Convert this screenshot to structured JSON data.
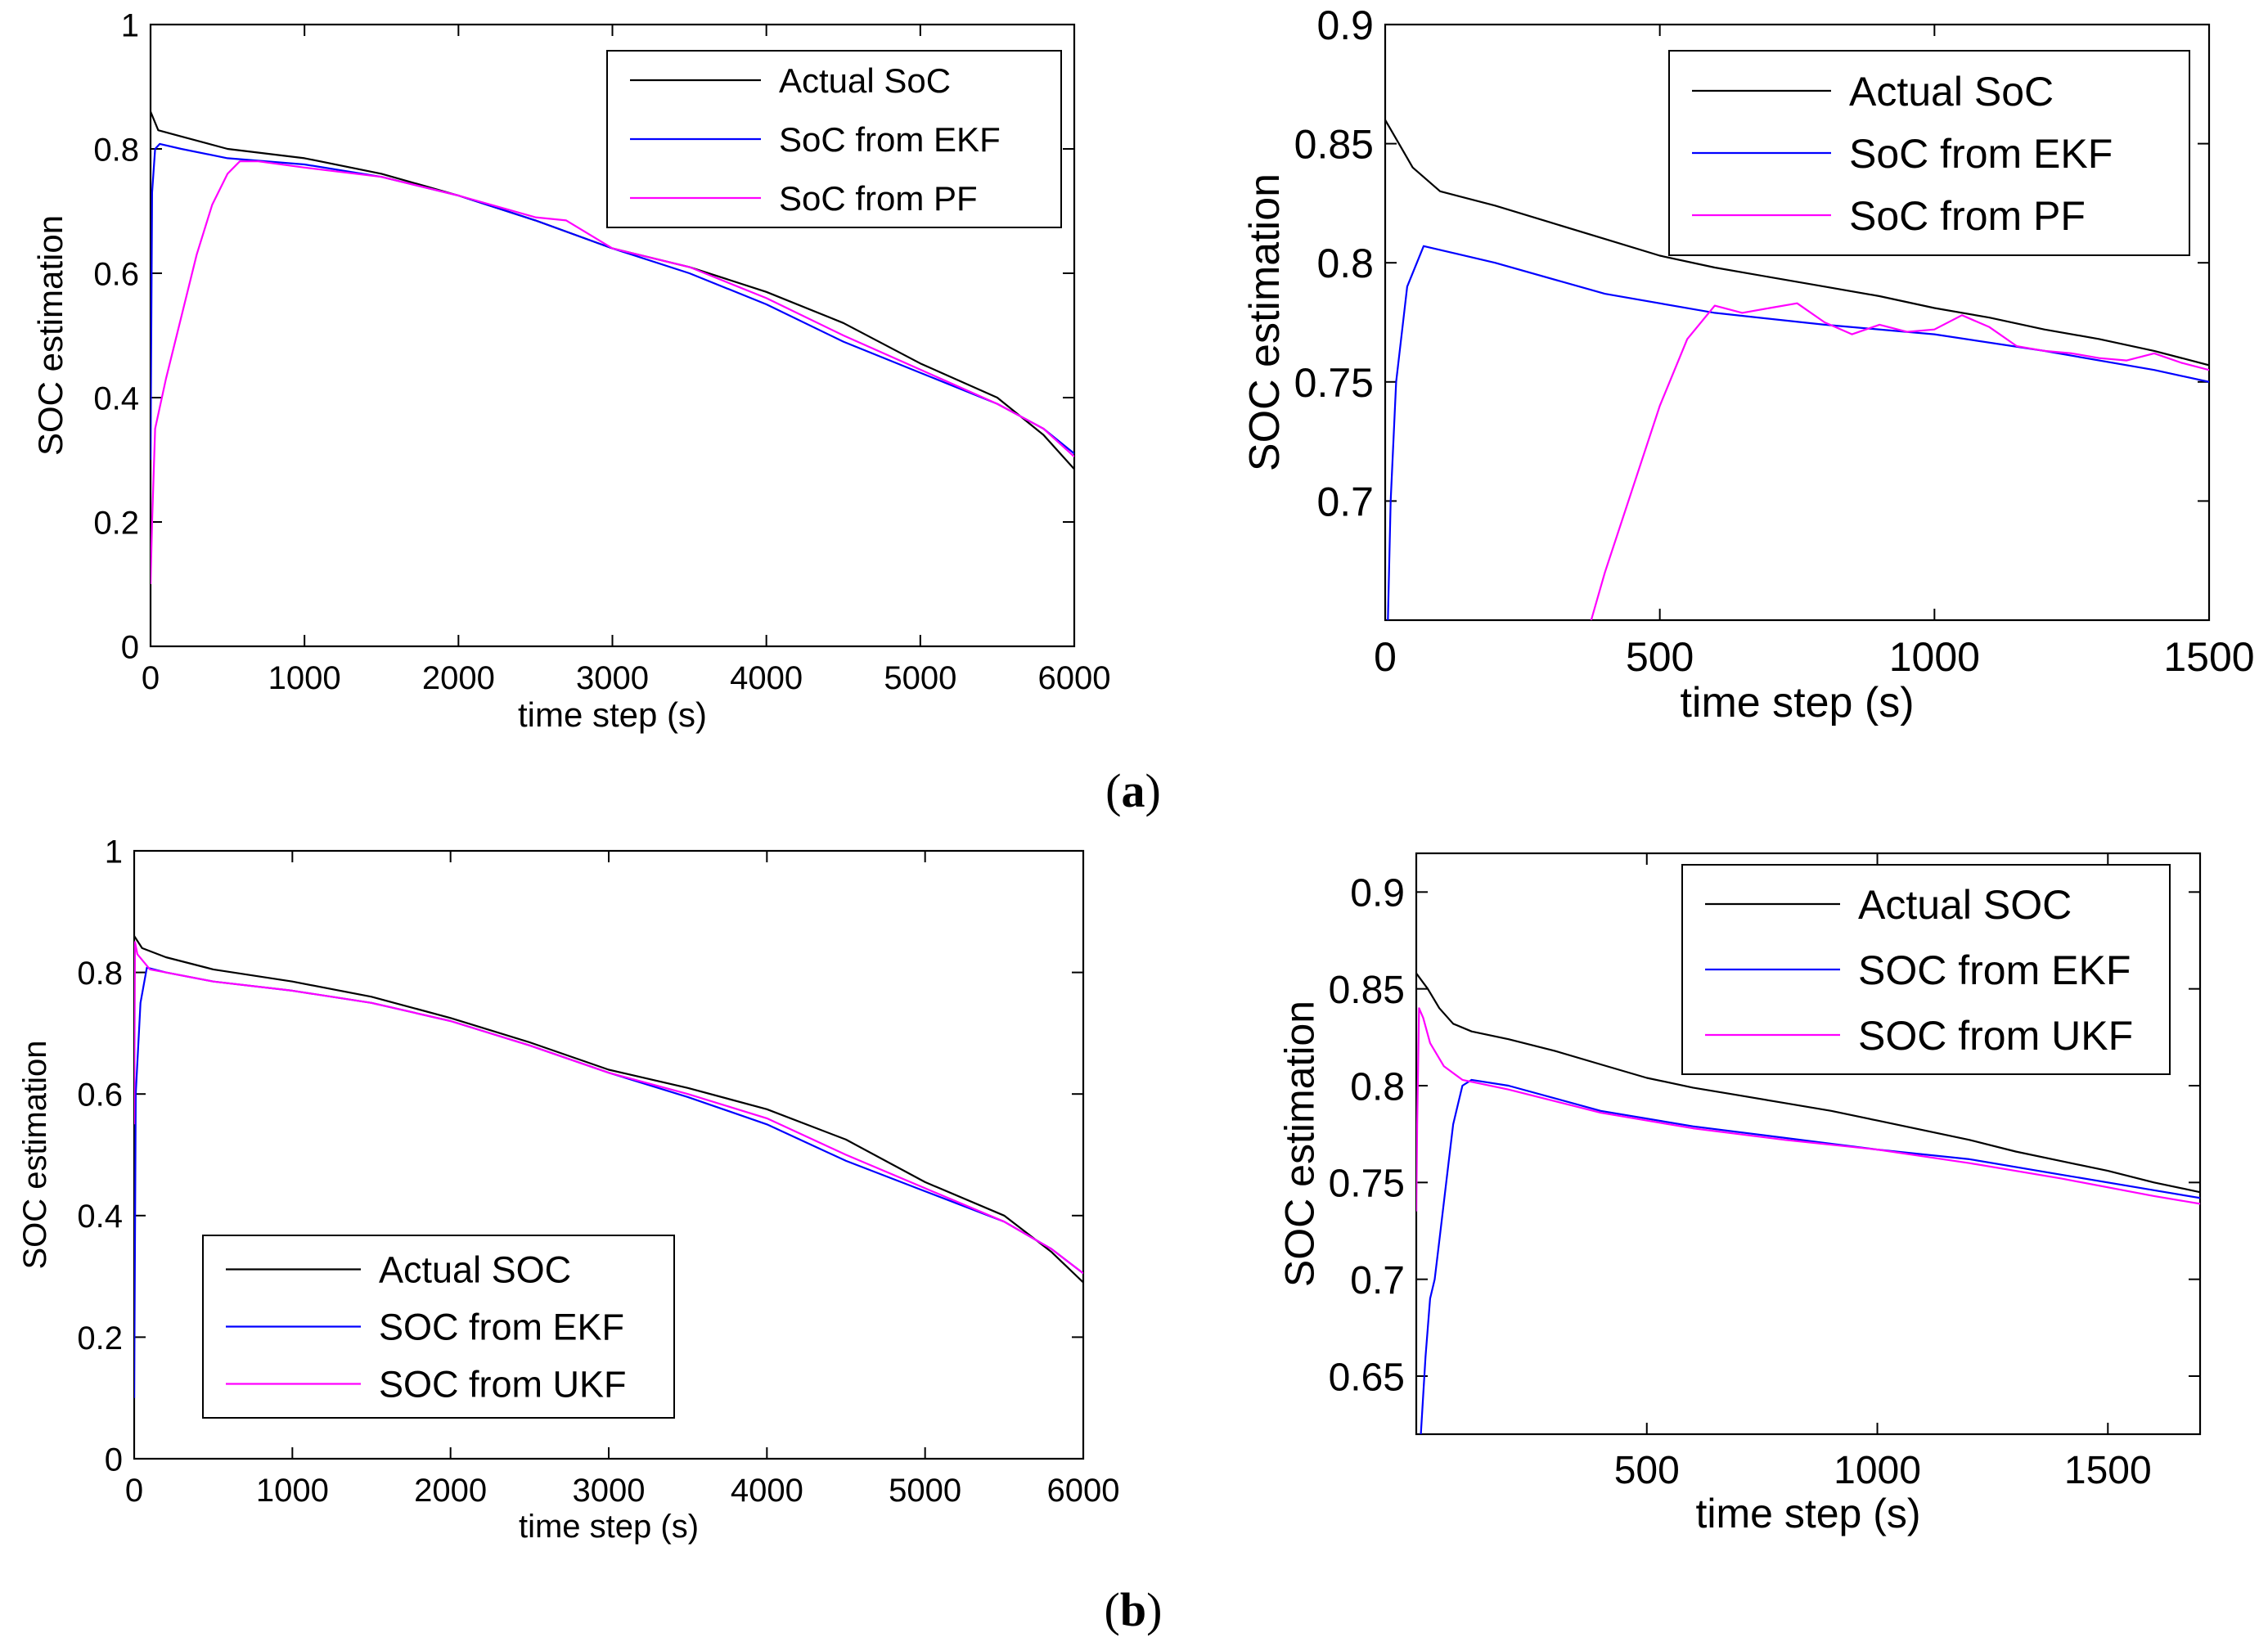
{
  "figure": {
    "label_a": "a",
    "label_b": "b"
  },
  "chart_data": [
    {
      "type": "line",
      "xlabel": "time step (s)",
      "ylabel": "SOC estimation",
      "xlim": [
        0,
        6000
      ],
      "ylim": [
        0,
        1
      ],
      "xticks": [
        0,
        1000,
        2000,
        3000,
        4000,
        5000,
        6000
      ],
      "yticks": [
        0,
        0.2,
        0.4,
        0.6,
        0.8,
        1
      ],
      "ytick_labels": [
        "0",
        "0.2",
        "0.4",
        "0.6",
        "0.8",
        "1"
      ],
      "legend_position": "top-right",
      "series": [
        {
          "name": "Actual SoC",
          "color": "#000000",
          "x": [
            0,
            50,
            200,
            500,
            1000,
            1500,
            2000,
            2500,
            3000,
            3500,
            4000,
            4500,
            5000,
            5500,
            5800,
            6000
          ],
          "y": [
            0.86,
            0.83,
            0.82,
            0.8,
            0.785,
            0.76,
            0.725,
            0.685,
            0.64,
            0.61,
            0.57,
            0.52,
            0.455,
            0.4,
            0.34,
            0.285
          ]
        },
        {
          "name": "SoC from EKF",
          "color": "#0000ff",
          "x": [
            0,
            10,
            30,
            60,
            200,
            500,
            1000,
            1500,
            2000,
            2500,
            3000,
            3500,
            4000,
            4500,
            5000,
            5500,
            5800,
            6000
          ],
          "y": [
            0.3,
            0.73,
            0.8,
            0.808,
            0.8,
            0.785,
            0.775,
            0.755,
            0.725,
            0.685,
            0.64,
            0.6,
            0.55,
            0.49,
            0.44,
            0.39,
            0.35,
            0.31
          ]
        },
        {
          "name": "SoC from PF",
          "color": "#ff00ff",
          "x": [
            0,
            10,
            30,
            100,
            200,
            300,
            400,
            500,
            580,
            700,
            1000,
            1500,
            2000,
            2500,
            2700,
            3000,
            3500,
            4000,
            4500,
            5000,
            5500,
            5800,
            6000
          ],
          "y": [
            0.1,
            0.2,
            0.35,
            0.43,
            0.53,
            0.63,
            0.71,
            0.76,
            0.78,
            0.78,
            0.77,
            0.755,
            0.725,
            0.69,
            0.685,
            0.64,
            0.61,
            0.56,
            0.5,
            0.445,
            0.39,
            0.35,
            0.305
          ]
        }
      ]
    },
    {
      "type": "line",
      "xlabel": "time step (s)",
      "ylabel": "SOC estimation",
      "xlim": [
        0,
        1500
      ],
      "ylim": [
        0.65,
        0.9
      ],
      "xticks": [
        0,
        500,
        1000,
        1500
      ],
      "yticks": [
        0.7,
        0.75,
        0.8,
        0.85,
        0.9
      ],
      "ytick_labels": [
        "0.7",
        "0.75",
        "0.8",
        "0.85",
        "0.9"
      ],
      "legend_position": "top-right",
      "series": [
        {
          "name": "Actual SoC",
          "color": "#000000",
          "x": [
            0,
            25,
            50,
            100,
            200,
            300,
            400,
            500,
            600,
            700,
            800,
            900,
            1000,
            1100,
            1200,
            1300,
            1400,
            1500
          ],
          "y": [
            0.86,
            0.85,
            0.84,
            0.83,
            0.824,
            0.817,
            0.81,
            0.803,
            0.798,
            0.794,
            0.79,
            0.786,
            0.781,
            0.777,
            0.772,
            0.768,
            0.763,
            0.757
          ]
        },
        {
          "name": "SoC from EKF",
          "color": "#0000ff",
          "x": [
            0,
            10,
            20,
            40,
            70,
            200,
            400,
            600,
            800,
            1000,
            1200,
            1400,
            1500
          ],
          "y": [
            0.6,
            0.7,
            0.75,
            0.79,
            0.807,
            0.8,
            0.787,
            0.779,
            0.774,
            0.77,
            0.763,
            0.755,
            0.75
          ]
        },
        {
          "name": "SoC from PF",
          "color": "#ff00ff",
          "x": [
            375,
            400,
            450,
            500,
            550,
            600,
            650,
            700,
            750,
            800,
            850,
            900,
            950,
            1000,
            1050,
            1100,
            1150,
            1200,
            1250,
            1300,
            1350,
            1400,
            1450,
            1500
          ],
          "y": [
            0.65,
            0.67,
            0.705,
            0.74,
            0.768,
            0.782,
            0.779,
            0.781,
            0.783,
            0.775,
            0.77,
            0.774,
            0.771,
            0.772,
            0.778,
            0.773,
            0.765,
            0.763,
            0.762,
            0.76,
            0.759,
            0.762,
            0.758,
            0.755
          ]
        }
      ]
    },
    {
      "type": "line",
      "xlabel": "time step (s)",
      "ylabel": "SOC estimation",
      "xlim": [
        0,
        6000
      ],
      "ylim": [
        0,
        1
      ],
      "xticks": [
        0,
        1000,
        2000,
        3000,
        4000,
        5000,
        6000
      ],
      "yticks": [
        0,
        0.2,
        0.4,
        0.6,
        0.8,
        1
      ],
      "ytick_labels": [
        "0",
        "0.2",
        "0.4",
        "0.6",
        "0.8",
        "1"
      ],
      "legend_position": "bottom-left",
      "series": [
        {
          "name": "Actual SOC",
          "color": "#000000",
          "x": [
            0,
            50,
            200,
            500,
            1000,
            1500,
            2000,
            2500,
            3000,
            3500,
            4000,
            4500,
            5000,
            5500,
            5800,
            6000
          ],
          "y": [
            0.86,
            0.84,
            0.825,
            0.805,
            0.785,
            0.76,
            0.725,
            0.685,
            0.64,
            0.61,
            0.575,
            0.525,
            0.455,
            0.4,
            0.34,
            0.29
          ]
        },
        {
          "name": "SOC from EKF",
          "color": "#0000ff",
          "x": [
            0,
            10,
            40,
            80,
            200,
            500,
            1000,
            1500,
            2000,
            2500,
            3000,
            3500,
            4000,
            4500,
            5000,
            5500,
            5800,
            6000
          ],
          "y": [
            0.1,
            0.6,
            0.75,
            0.808,
            0.8,
            0.785,
            0.77,
            0.75,
            0.72,
            0.68,
            0.635,
            0.595,
            0.55,
            0.49,
            0.44,
            0.39,
            0.345,
            0.305
          ]
        },
        {
          "name": "SOC from UKF",
          "color": "#ff00ff",
          "x": [
            0,
            5,
            20,
            100,
            200,
            500,
            1000,
            1500,
            2000,
            2500,
            3000,
            3500,
            4000,
            4500,
            5000,
            5500,
            5800,
            6000
          ],
          "y": [
            0.55,
            0.85,
            0.83,
            0.805,
            0.8,
            0.785,
            0.77,
            0.75,
            0.72,
            0.68,
            0.635,
            0.6,
            0.56,
            0.5,
            0.445,
            0.39,
            0.345,
            0.305
          ]
        }
      ]
    },
    {
      "type": "line",
      "xlabel": "time step (s)",
      "ylabel": "SOC estimation",
      "xlim": [
        0,
        1700
      ],
      "ylim": [
        0.62,
        0.92
      ],
      "xticks": [
        500,
        1000,
        1500
      ],
      "yticks": [
        0.65,
        0.7,
        0.75,
        0.8,
        0.85,
        0.9
      ],
      "ytick_labels": [
        "0.65",
        "0.7",
        "0.75",
        "0.8",
        "0.85",
        "0.9"
      ],
      "legend_position": "top-right",
      "series": [
        {
          "name": "Actual SOC",
          "color": "#000000",
          "x": [
            0,
            25,
            50,
            80,
            120,
            200,
            300,
            400,
            500,
            600,
            700,
            800,
            900,
            1000,
            1100,
            1200,
            1300,
            1400,
            1500,
            1600,
            1700
          ],
          "y": [
            0.858,
            0.85,
            0.84,
            0.832,
            0.828,
            0.824,
            0.818,
            0.811,
            0.804,
            0.799,
            0.795,
            0.791,
            0.787,
            0.782,
            0.777,
            0.772,
            0.766,
            0.761,
            0.756,
            0.75,
            0.745
          ]
        },
        {
          "name": "SOC from EKF",
          "color": "#0000ff",
          "x": [
            10,
            20,
            30,
            40,
            50,
            60,
            70,
            80,
            90,
            100,
            120,
            200,
            400,
            600,
            800,
            1000,
            1200,
            1400,
            1600,
            1700
          ],
          "y": [
            0.62,
            0.66,
            0.69,
            0.7,
            0.72,
            0.74,
            0.76,
            0.78,
            0.79,
            0.8,
            0.803,
            0.8,
            0.787,
            0.779,
            0.773,
            0.767,
            0.762,
            0.754,
            0.746,
            0.742
          ]
        },
        {
          "name": "SOC from UKF",
          "color": "#ff00ff",
          "x": [
            0,
            2,
            6,
            15,
            30,
            60,
            100,
            200,
            400,
            600,
            800,
            1000,
            1200,
            1400,
            1600,
            1700
          ],
          "y": [
            0.735,
            0.78,
            0.84,
            0.835,
            0.822,
            0.81,
            0.803,
            0.798,
            0.786,
            0.778,
            0.772,
            0.767,
            0.76,
            0.752,
            0.743,
            0.739
          ]
        }
      ]
    }
  ]
}
